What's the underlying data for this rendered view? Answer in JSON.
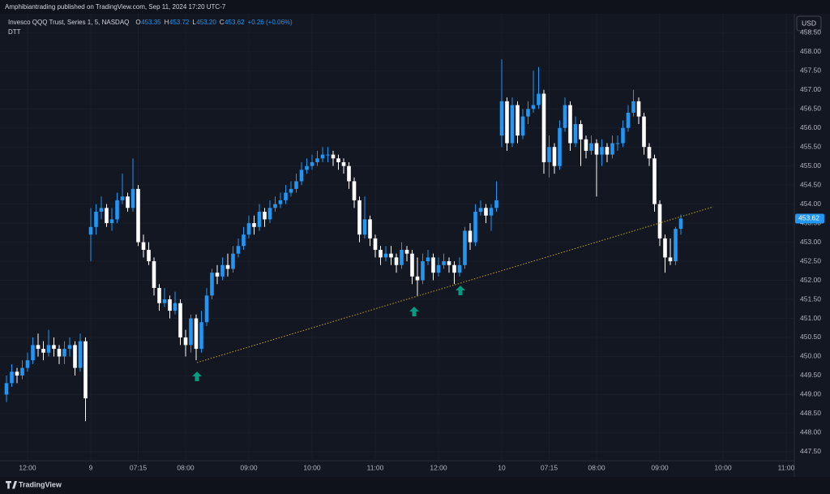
{
  "chart_data": {
    "type": "candlestick",
    "publisher": "Amphibiantrading published on TradingView.com, Sep 11, 2024 17:20 UTC-7",
    "title": "Invesco QQQ Trust, Series 1, 5, NASDAQ",
    "quote": {
      "labels": [
        "O",
        "H",
        "L",
        "C"
      ],
      "values": [
        "453.35",
        "453.72",
        "453.20",
        "453.62"
      ],
      "change": "+0.26 (+0.06%)"
    },
    "indicator": "DTT",
    "currency": "USD",
    "brand": "TradingView",
    "up_color": "#2196f3",
    "down_color": "#ffffff",
    "grid": true,
    "ylim": [
      447.22,
      458.72
    ],
    "yticks": [
      {
        "value": 447.5,
        "label": "447.50"
      },
      {
        "value": 448,
        "label": "448.00"
      },
      {
        "value": 448.5,
        "label": "448.50"
      },
      {
        "value": 449,
        "label": "449.00"
      },
      {
        "value": 449.5,
        "label": "449.50"
      },
      {
        "value": 450,
        "label": "450.00"
      },
      {
        "value": 450.5,
        "label": "450.50"
      },
      {
        "value": 451,
        "label": "451.00"
      },
      {
        "value": 451.5,
        "label": "451.50"
      },
      {
        "value": 452,
        "label": "452.00"
      },
      {
        "value": 452.5,
        "label": "452.50"
      },
      {
        "value": 453,
        "label": "453.00"
      },
      {
        "value": 453.5,
        "label": "453.50"
      },
      {
        "value": 454,
        "label": "454.00"
      },
      {
        "value": 454.5,
        "label": "454.50"
      },
      {
        "value": 455,
        "label": "455.00"
      },
      {
        "value": 455.5,
        "label": "455.50"
      },
      {
        "value": 456,
        "label": "456.00"
      },
      {
        "value": 456.5,
        "label": "456.50"
      },
      {
        "value": 457,
        "label": "457.00"
      },
      {
        "value": 457.5,
        "label": "457.50"
      },
      {
        "value": 458,
        "label": "458.00"
      },
      {
        "value": 458.5,
        "label": "458.50"
      }
    ],
    "categories": [
      null,
      null,
      null,
      null,
      "12:00",
      null,
      null,
      null,
      null,
      null,
      null,
      null,
      null,
      null,
      null,
      null,
      "9",
      null,
      null,
      null,
      null,
      null,
      null,
      null,
      null,
      "07:15",
      null,
      null,
      null,
      null,
      null,
      null,
      null,
      null,
      "08:00",
      null,
      null,
      null,
      null,
      null,
      null,
      null,
      null,
      null,
      null,
      null,
      "09:00",
      null,
      null,
      null,
      null,
      null,
      null,
      null,
      null,
      null,
      null,
      null,
      "10:00",
      null,
      null,
      null,
      null,
      null,
      null,
      null,
      null,
      null,
      null,
      null,
      "11:00",
      null,
      null,
      null,
      null,
      null,
      null,
      null,
      null,
      null,
      null,
      null,
      "12:00",
      null,
      null,
      null,
      null,
      null,
      null,
      null,
      null,
      null,
      null,
      null,
      "10",
      null,
      null,
      null,
      null,
      null,
      null,
      null,
      null,
      "07:15",
      null,
      null,
      null,
      null,
      null,
      null,
      null,
      null,
      "08:00",
      null,
      null,
      null,
      null,
      null,
      null,
      null,
      null,
      null,
      null,
      null,
      "09:00",
      null,
      null,
      null,
      null,
      null,
      null,
      null,
      null,
      null,
      null,
      null,
      "10:00",
      null,
      null,
      null,
      null,
      null,
      null,
      null,
      null,
      null,
      null,
      null,
      "11:00",
      null
    ],
    "open": [
      449.0,
      449.3,
      449.6,
      449.5,
      449.7,
      449.9,
      450.3,
      450.2,
      450.1,
      450.3,
      450.2,
      450.0,
      450.2,
      450.3,
      449.7,
      450.4,
      453.2,
      453.4,
      453.8,
      453.9,
      453.5,
      453.6,
      454.1,
      454.2,
      453.9,
      454.4,
      453.0,
      452.8,
      452.5,
      451.8,
      451.4,
      451.5,
      451.2,
      451.4,
      450.5,
      450.3,
      451.0,
      450.2,
      450.9,
      451.6,
      452.2,
      452.1,
      452.4,
      452.3,
      452.7,
      452.9,
      453.2,
      453.5,
      453.4,
      453.8,
      453.6,
      453.9,
      454.0,
      454.1,
      454.3,
      454.4,
      454.6,
      454.9,
      455.0,
      455.1,
      455.2,
      455.3,
      455.3,
      455.2,
      455.1,
      455.0,
      454.6,
      454.1,
      453.2,
      453.6,
      453.1,
      452.8,
      452.6,
      452.7,
      452.6,
      452.4,
      452.8,
      452.7,
      452.1,
      452.0,
      452.5,
      452.6,
      452.2,
      452.4,
      452.5,
      452.4,
      452.2,
      452.4,
      453.3,
      453.0,
      453.8,
      453.9,
      453.7,
      453.9,
      455.8,
      456.7,
      455.6,
      456.6,
      455.8,
      456.3,
      456.5,
      456.6,
      456.9,
      455.1,
      455.5,
      455.0,
      456.0,
      456.6,
      455.6,
      456.1,
      455.7,
      455.4,
      455.6,
      455.3,
      455.5,
      455.3,
      455.6,
      455.6,
      456.0,
      456.4,
      456.7,
      456.3,
      455.5,
      455.2,
      454.0,
      453.1,
      452.6,
      452.5,
      453.35,
      null,
      null,
      null,
      null,
      null,
      null,
      null,
      null,
      null,
      null,
      null,
      null,
      null,
      null,
      null,
      null,
      null,
      null,
      null,
      null,
      null
    ],
    "high": [
      449.5,
      449.8,
      449.7,
      449.9,
      450.1,
      450.5,
      450.6,
      450.4,
      450.7,
      450.5,
      450.3,
      450.4,
      450.5,
      450.4,
      450.6,
      450.5,
      453.9,
      454.0,
      454.2,
      454.0,
      453.9,
      454.3,
      454.8,
      454.3,
      455.2,
      454.5,
      453.2,
      453.0,
      452.6,
      451.9,
      451.8,
      451.6,
      451.7,
      451.5,
      450.7,
      451.1,
      451.1,
      451.2,
      451.8,
      452.3,
      452.4,
      452.6,
      452.7,
      452.9,
      453.1,
      453.4,
      453.7,
      453.7,
      454.0,
      453.9,
      454.1,
      454.2,
      454.3,
      454.5,
      454.6,
      454.8,
      455.1,
      455.2,
      455.3,
      455.4,
      455.5,
      455.5,
      455.4,
      455.3,
      455.2,
      455.1,
      454.7,
      454.2,
      454.2,
      453.7,
      453.2,
      452.9,
      452.9,
      452.9,
      452.7,
      453.0,
      452.9,
      452.8,
      452.6,
      452.7,
      452.8,
      452.7,
      452.6,
      452.7,
      452.6,
      452.5,
      452.6,
      453.4,
      453.5,
      454.0,
      454.1,
      454.0,
      454.0,
      454.6,
      457.8,
      456.8,
      456.8,
      456.7,
      456.5,
      456.7,
      457.5,
      457.6,
      457.0,
      455.8,
      455.6,
      456.2,
      456.8,
      456.7,
      456.3,
      456.2,
      455.8,
      455.8,
      455.7,
      455.7,
      455.6,
      455.8,
      455.8,
      456.2,
      456.6,
      457.0,
      456.8,
      456.4,
      455.6,
      455.3,
      454.1,
      453.2,
      453.1,
      453.4,
      453.72,
      null,
      null,
      null,
      null,
      null,
      null,
      null,
      null,
      null,
      null,
      null,
      null,
      null,
      null,
      null,
      null,
      null,
      null,
      null,
      null,
      null
    ],
    "low": [
      448.8,
      449.2,
      449.3,
      449.4,
      449.6,
      449.8,
      450.0,
      449.9,
      450.0,
      450.0,
      449.8,
      449.8,
      450.0,
      449.5,
      449.6,
      448.3,
      452.5,
      453.2,
      453.6,
      453.4,
      453.3,
      453.5,
      454.0,
      453.8,
      453.8,
      452.9,
      452.6,
      452.4,
      451.6,
      451.2,
      451.3,
      451.0,
      451.1,
      450.3,
      450.0,
      450.1,
      449.9,
      450.1,
      450.8,
      451.5,
      451.9,
      452.0,
      452.1,
      452.2,
      452.6,
      452.8,
      453.1,
      453.2,
      453.3,
      453.4,
      453.5,
      453.8,
      453.9,
      454.0,
      454.2,
      454.3,
      454.5,
      454.8,
      454.9,
      455.0,
      455.1,
      455.1,
      455.0,
      454.9,
      454.8,
      454.4,
      453.9,
      453.0,
      453.1,
      452.9,
      452.6,
      452.4,
      452.5,
      452.4,
      452.2,
      452.3,
      452.5,
      451.9,
      451.6,
      451.9,
      452.4,
      452.0,
      452.1,
      452.3,
      452.2,
      451.9,
      452.1,
      452.3,
      452.8,
      452.9,
      453.7,
      453.5,
      453.3,
      453.8,
      455.5,
      455.4,
      455.5,
      455.6,
      455.7,
      456.1,
      456.4,
      456.5,
      454.8,
      454.7,
      454.8,
      454.9,
      455.9,
      455.4,
      455.5,
      455.0,
      455.2,
      455.3,
      454.2,
      455.0,
      455.1,
      455.2,
      455.4,
      455.5,
      455.9,
      456.3,
      456.1,
      455.3,
      455.0,
      453.8,
      452.9,
      452.2,
      452.4,
      452.4,
      453.2,
      null,
      null,
      null,
      null,
      null,
      null,
      null,
      null,
      null,
      null,
      null,
      null,
      null,
      null,
      null,
      null,
      null,
      null,
      null,
      null,
      null
    ],
    "close": [
      449.3,
      449.6,
      449.5,
      449.7,
      449.9,
      450.3,
      450.2,
      450.1,
      450.3,
      450.2,
      450.0,
      450.2,
      450.3,
      449.7,
      450.4,
      448.9,
      453.4,
      453.8,
      453.9,
      453.5,
      453.6,
      454.1,
      454.2,
      453.9,
      454.4,
      453.0,
      452.8,
      452.5,
      451.8,
      451.4,
      451.5,
      451.2,
      451.4,
      450.5,
      450.3,
      451.0,
      450.2,
      450.9,
      451.6,
      452.2,
      452.1,
      452.4,
      452.3,
      452.7,
      452.9,
      453.2,
      453.5,
      453.4,
      453.8,
      453.6,
      453.9,
      454.0,
      454.1,
      454.3,
      454.4,
      454.6,
      454.9,
      455.0,
      455.1,
      455.2,
      455.3,
      455.3,
      455.2,
      455.1,
      455.0,
      454.6,
      454.1,
      453.2,
      453.6,
      453.1,
      452.8,
      452.6,
      452.7,
      452.6,
      452.4,
      452.8,
      452.7,
      452.1,
      452.0,
      452.5,
      452.6,
      452.2,
      452.4,
      452.5,
      452.4,
      452.2,
      452.4,
      453.3,
      453.0,
      453.8,
      453.9,
      453.7,
      453.9,
      454.1,
      456.7,
      455.6,
      456.6,
      455.8,
      456.3,
      456.5,
      456.6,
      456.9,
      455.1,
      455.5,
      455.0,
      456.0,
      456.6,
      455.6,
      456.1,
      455.7,
      455.4,
      455.6,
      455.3,
      455.5,
      455.3,
      455.6,
      455.6,
      456.0,
      456.4,
      456.7,
      456.3,
      455.5,
      455.2,
      454.0,
      453.1,
      452.6,
      452.5,
      453.35,
      453.62,
      null,
      null,
      null,
      null,
      null,
      null,
      null,
      null,
      null,
      null,
      null,
      null,
      null,
      null,
      null,
      null,
      null,
      null,
      null,
      null,
      null
    ]
  }
}
